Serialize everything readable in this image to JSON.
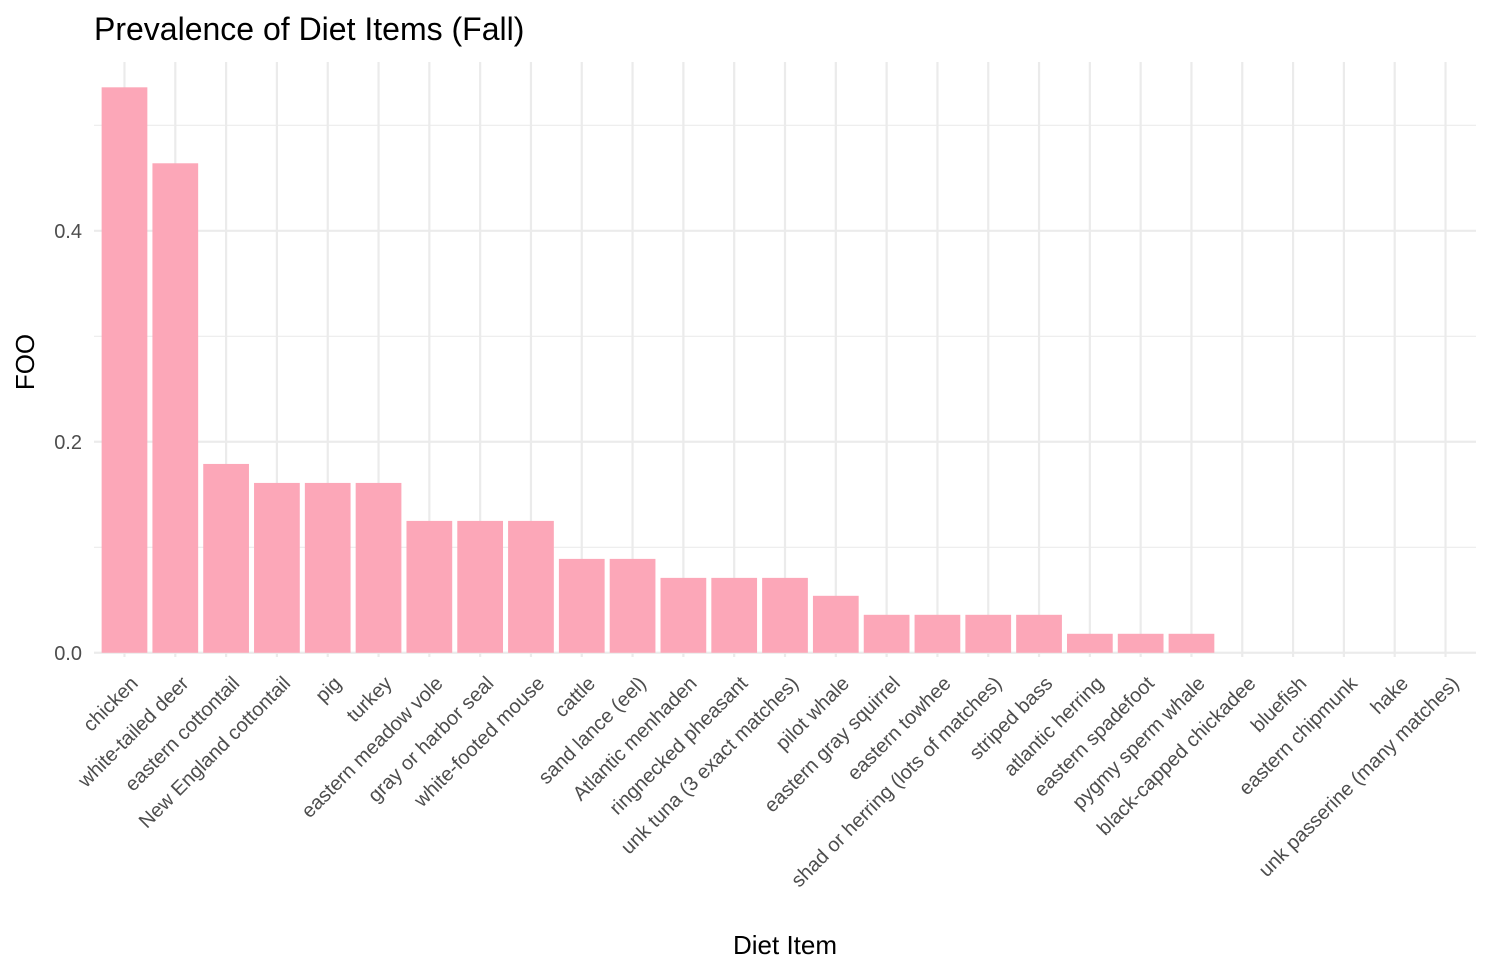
{
  "chart_data": {
    "type": "bar",
    "title": "Prevalence of Diet Items (Fall)",
    "xlabel": "Diet Item",
    "ylabel": "FOO",
    "ylim": [
      -0.004,
      0.56
    ],
    "yticks": [
      0.0,
      0.2,
      0.4
    ],
    "ytick_labels": [
      "0.0",
      "0.2",
      "0.4"
    ],
    "grid": true,
    "bar_color": "#FCA7B8",
    "categories": [
      "chicken",
      "white-tailed deer",
      "eastern cottontail",
      "New England cottontail",
      "pig",
      "turkey",
      "eastern meadow vole",
      "gray or harbor seal",
      "white-footed mouse",
      "cattle",
      "sand lance (eel)",
      "Atlantic menhaden",
      "ringnecked pheasant",
      "unk tuna (3 exact matches)",
      "pilot whale",
      "eastern gray squirrel",
      "eastern towhee",
      "shad or herring (lots of matches)",
      "striped bass",
      "atlantic herring",
      "eastern spadefoot",
      "pygmy sperm whale",
      "black-capped chickadee",
      "bluefish",
      "eastern chipmunk",
      "hake",
      "unk passerine (many matches)"
    ],
    "values": [
      0.536,
      0.464,
      0.179,
      0.161,
      0.161,
      0.161,
      0.125,
      0.125,
      0.125,
      0.089,
      0.089,
      0.071,
      0.071,
      0.071,
      0.054,
      0.036,
      0.036,
      0.036,
      0.036,
      0.018,
      0.018,
      0.018,
      0,
      0,
      0,
      0,
      0
    ]
  }
}
